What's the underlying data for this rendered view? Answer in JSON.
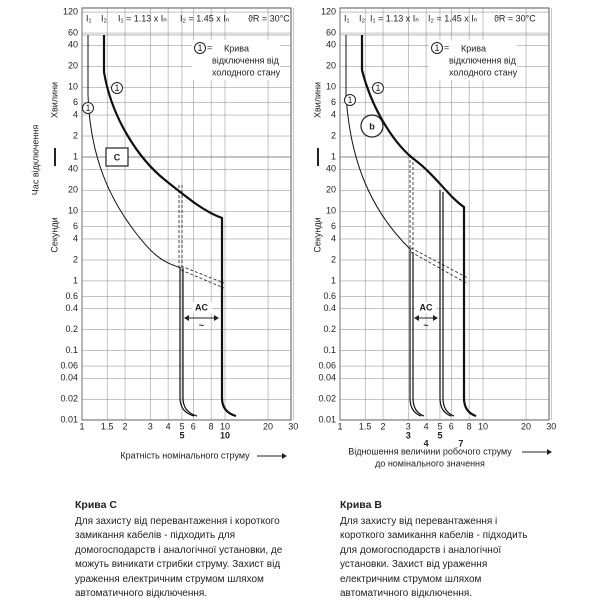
{
  "charts": [
    {
      "y_ticks_min": [
        "120",
        "60",
        "40",
        "20",
        "10",
        "6",
        "4",
        "2",
        "1"
      ],
      "y_ticks_sec": [
        "40",
        "20",
        "10",
        "6",
        "4",
        "2",
        "1",
        "0.6",
        "0.4",
        "0.2",
        "0.1",
        "0.06",
        "0.04",
        "0.02",
        "0.01"
      ],
      "x_ticks": [
        "1",
        "1.5",
        "2",
        "3",
        "4",
        "5",
        "6",
        "8",
        "10",
        "20",
        "30"
      ],
      "x_marks": [
        "5",
        "10"
      ],
      "x_label": [
        "Кратність номінального струму"
      ],
      "minutes_label": "Хвилини",
      "seconds_label": "Секунди",
      "time_label": "Час відключення",
      "i1": "I₁",
      "i2": "I₂",
      "f1": "I₁ = 1.13 x Iₙ",
      "f2": "I₂ = 1.45 x Iₙ",
      "temp": "ϑR = 30°C",
      "legend_symbol": "1",
      "legend_eq": "=",
      "legend_text": [
        "Крива",
        "відключення від",
        "холодного стану"
      ],
      "curve_markers": [
        "1",
        "1"
      ],
      "badge": "C",
      "ac": "AC",
      "tilde": "~"
    },
    {
      "y_ticks_min": [
        "120",
        "60",
        "40",
        "20",
        "10",
        "6",
        "4",
        "2",
        "1"
      ],
      "y_ticks_sec": [
        "40",
        "20",
        "10",
        "6",
        "4",
        "2",
        "1",
        "0.6",
        "0.4",
        "0.2",
        "0.1",
        "0.06",
        "0.04",
        "0.02",
        "0.01"
      ],
      "x_ticks": [
        "1",
        "1.5",
        "2",
        "3",
        "4",
        "5",
        "6",
        "8",
        "10",
        "20",
        "30"
      ],
      "x_marks": [
        "3",
        "4",
        "5",
        "7"
      ],
      "x_label": [
        "Відношення величини робочого струму",
        "до номінального значення"
      ],
      "minutes_label": "Хвилини",
      "seconds_label": "Секунди",
      "i1": "I₁",
      "i2": "I₂",
      "f1": "I₁ = 1.13 x Iₙ",
      "f2": "I₂ = 1.45 x Iₙ",
      "temp": "ϑR = 30°C",
      "legend_symbol": "1",
      "legend_eq": "=",
      "legend_text": [
        "Крива",
        "відключення від",
        "холодного стану"
      ],
      "curve_markers": [
        "1",
        "1"
      ],
      "badge": "b",
      "ac": "AC",
      "tilde": "~"
    }
  ],
  "captions": [
    {
      "title": "Крива C",
      "lines": [
        "Для захисту від перевантаження і короткого",
        "замикання кабелів - підходить для",
        "домогосподарств і аналогічної установки, де",
        "можуть виникати стрибки струму. Захист від",
        "ураження електричним струмом шляхом",
        "автоматичного відключення."
      ]
    },
    {
      "title": "Крива B",
      "lines": [
        "Для захисту від перевантаження і",
        "короткого замикання кабелів - підходить",
        "для домогосподарств і аналогічної",
        "установки. Захист від ураження",
        "електричним струмом шляхом",
        "автоматичного відключення."
      ]
    }
  ]
}
